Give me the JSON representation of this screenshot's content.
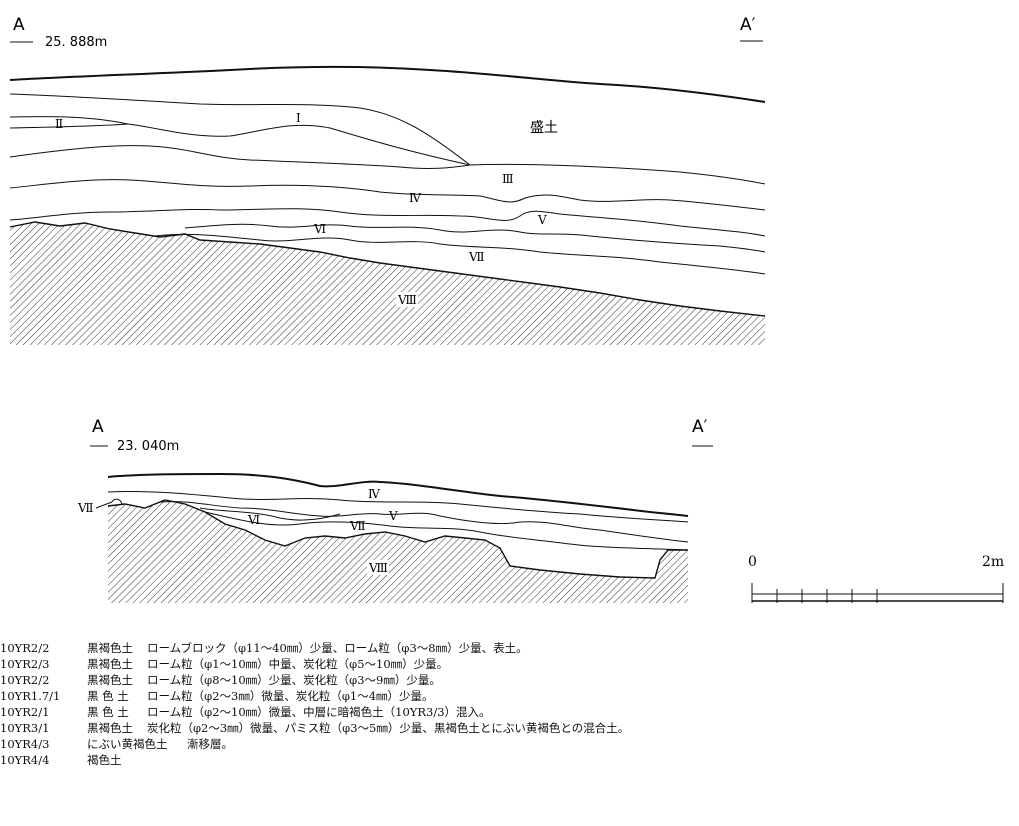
{
  "section1": {
    "left_label": "A",
    "right_label": "A′",
    "elevation": "25. 888m",
    "layers": {
      "I": "Ⅰ",
      "II": "Ⅱ",
      "III": "Ⅲ",
      "IV": "Ⅳ",
      "V": "Ⅴ",
      "VI": "Ⅵ",
      "VII": "Ⅶ",
      "VIII": "Ⅷ",
      "fill": "盛土"
    }
  },
  "section2": {
    "left_label": "A",
    "right_label": "A′",
    "elevation": "23. 040m",
    "layers": {
      "IV": "Ⅳ",
      "V": "Ⅴ",
      "VI": "Ⅵ",
      "VII": "Ⅶ",
      "VII_left": "Ⅶ",
      "VIII": "Ⅷ"
    }
  },
  "scale": {
    "start": "0",
    "end": "2m"
  },
  "legend": [
    {
      "code": "10YR2/2",
      "color": "黒褐色土",
      "desc": "ロームブロック（φ11～40㎜）少量、ローム粒（φ3～8㎜）少量、表土。"
    },
    {
      "code": "10YR2/3",
      "color": "黒褐色土",
      "desc": "ローム粒（φ1～10㎜）中量、炭化粒（φ5～10㎜）少量。"
    },
    {
      "code": "10YR2/2",
      "color": "黒褐色土",
      "desc": "ローム粒（φ8～10㎜）少量、炭化粒（φ3～9㎜）少量。"
    },
    {
      "code": "10YR1.7/1",
      "color": "黒 色 土",
      "desc": "ローム粒（φ2～3㎜）微量、炭化粒（φ1～4㎜）少量。"
    },
    {
      "code": "10YR2/1",
      "color": "黒 色 土",
      "desc": "ローム粒（φ2～10㎜）微量、中層に暗褐色土（10YR3/3）混入。"
    },
    {
      "code": "10YR3/1",
      "color": "黒褐色土",
      "desc": "炭化粒（φ2～3㎜）微量、パミス粒（φ3～5㎜）少量、黒褐色土とにぶい黄褐色との混合土。"
    },
    {
      "code": "10YR4/3",
      "color": "にぶい黄褐色土",
      "desc": "漸移層。"
    },
    {
      "code": "10YR4/4",
      "color": "褐色土",
      "desc": ""
    }
  ]
}
